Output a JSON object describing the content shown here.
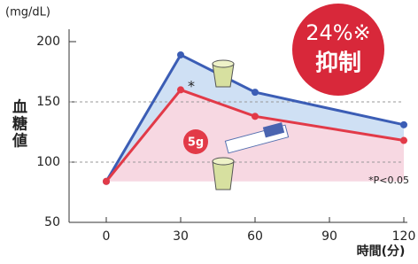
{
  "chart_data": {
    "type": "line",
    "unit_label": "(mg/dL)",
    "y_label": "血糖値",
    "x_label": "時間(分)",
    "x": [
      0,
      30,
      60,
      120
    ],
    "series": [
      {
        "color": "#3b5db5",
        "values": [
          84,
          189,
          158,
          131
        ]
      },
      {
        "color": "#e23a48",
        "values": [
          84,
          160,
          138,
          118
        ]
      }
    ],
    "xlim": [
      -15,
      120
    ],
    "xticks": [
      0,
      30,
      60,
      90,
      120
    ],
    "ylim": [
      50,
      200
    ],
    "yticks": [
      50,
      100,
      150,
      200
    ],
    "grid": true,
    "badge_value": "24%※",
    "badge_text": "抑制",
    "dose_label": "5g",
    "significance_marker": "*",
    "note": "*P<0.05"
  }
}
